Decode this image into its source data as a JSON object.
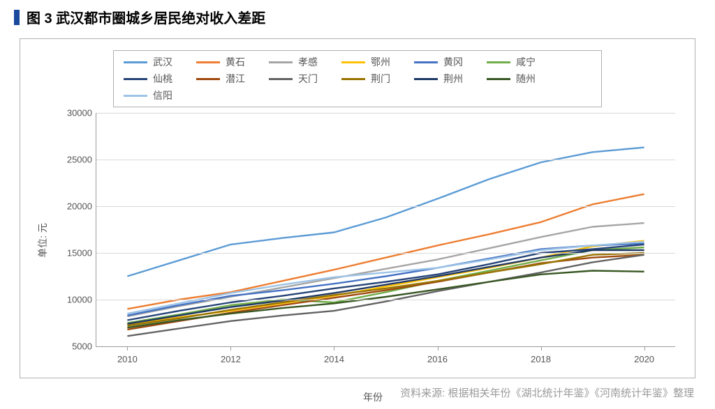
{
  "title": "图 3  武汉都市圈城乡居民绝对收入差距",
  "title_marker_color": "#1a4a9c",
  "source_note": "资料来源: 根据相关年份《湖北统计年鉴》《河南统计年鉴》整理",
  "chart": {
    "type": "line",
    "background_color": "#ffffff",
    "grid_color": "#d9d9d9",
    "axis_color": "#999999",
    "font_color": "#555555",
    "ylabel": "单位: 元",
    "xlabel": "年份",
    "label_fontsize": 14,
    "tick_fontsize": 13,
    "legend_fontsize": 14,
    "line_width": 2.4,
    "x_values": [
      2010,
      2011,
      2012,
      2013,
      2014,
      2015,
      2016,
      2017,
      2018,
      2019,
      2020
    ],
    "x_ticks": [
      2010,
      2012,
      2014,
      2016,
      2018,
      2020
    ],
    "xlim": [
      2009.4,
      2020.6
    ],
    "ylim": [
      5000,
      30000
    ],
    "y_ticks": [
      5000,
      10000,
      15000,
      20000,
      25000,
      30000
    ],
    "series": [
      {
        "name": "武汉",
        "color": "#5b9bd5",
        "values": [
          12500,
          14200,
          15900,
          16600,
          17200,
          18800,
          20800,
          22900,
          24700,
          25800,
          26300
        ]
      },
      {
        "name": "黄石",
        "color": "#ed7d31",
        "values": [
          9000,
          10000,
          10800,
          12000,
          13200,
          14500,
          15800,
          17000,
          18300,
          20200,
          21300
        ]
      },
      {
        "name": "孝感",
        "color": "#a5a5a5",
        "values": [
          8200,
          9300,
          10300,
          11300,
          12300,
          13300,
          14300,
          15500,
          16700,
          17800,
          18200
        ]
      },
      {
        "name": "鄂州",
        "color": "#ffc000",
        "values": [
          7300,
          8100,
          8800,
          9600,
          10400,
          11400,
          12400,
          13400,
          14500,
          15700,
          16300
        ]
      },
      {
        "name": "黄冈",
        "color": "#4472c4",
        "values": [
          8300,
          9400,
          10400,
          11000,
          11700,
          12500,
          13400,
          14400,
          15400,
          15800,
          16000
        ]
      },
      {
        "name": "咸宁",
        "color": "#70ad47",
        "values": [
          7500,
          8400,
          9400,
          10000,
          9700,
          10800,
          12000,
          13100,
          14200,
          15300,
          15600
        ]
      },
      {
        "name": "仙桃",
        "color": "#264478",
        "values": [
          7800,
          8800,
          9700,
          10400,
          11200,
          11900,
          12700,
          13800,
          15000,
          15400,
          15900
        ]
      },
      {
        "name": "潜江",
        "color": "#9e480e",
        "values": [
          6800,
          7700,
          8600,
          9400,
          10200,
          11000,
          11900,
          12900,
          13900,
          14500,
          14800
        ]
      },
      {
        "name": "天门",
        "color": "#636363",
        "values": [
          6100,
          6900,
          7700,
          8300,
          8800,
          9800,
          10900,
          11900,
          12900,
          14000,
          14800
        ]
      },
      {
        "name": "荆门",
        "color": "#997300",
        "values": [
          7200,
          8000,
          8900,
          9700,
          10500,
          11200,
          12000,
          12900,
          13800,
          14800,
          15000
        ]
      },
      {
        "name": "荆州",
        "color": "#1f3864",
        "values": [
          7400,
          8300,
          9200,
          9900,
          10700,
          11600,
          12500,
          13500,
          14500,
          15300,
          15300
        ]
      },
      {
        "name": "随州",
        "color": "#385723",
        "values": [
          7000,
          7800,
          8500,
          9100,
          9600,
          10300,
          11100,
          11900,
          12700,
          13100,
          13000
        ]
      },
      {
        "name": "信阳",
        "color": "#9dc3e6",
        "values": [
          8500,
          9600,
          10700,
          11600,
          12400,
          12900,
          13400,
          14300,
          15300,
          15800,
          16200
        ]
      }
    ]
  }
}
